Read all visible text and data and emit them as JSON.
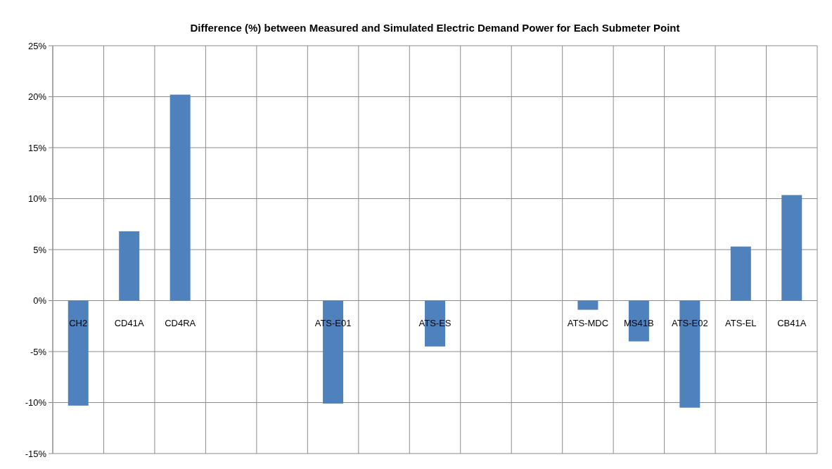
{
  "chart_data": {
    "type": "bar",
    "title": "Difference (%) between Measured and Simulated Electric Demand Power for Each Submeter Point",
    "categories": [
      "CH2",
      "CD41A",
      "CD4RA",
      null,
      null,
      "ATS-E01",
      null,
      "ATS-ES",
      null,
      null,
      "ATS-MDC",
      "MS41B",
      "ATS-E02",
      "ATS-EL",
      "CB41A"
    ],
    "values": [
      -10.3,
      6.8,
      20.2,
      null,
      null,
      -10.1,
      null,
      -4.5,
      null,
      null,
      -0.9,
      -4.0,
      -10.5,
      5.3,
      10.35
    ],
    "color": "#4f81bd",
    "ylim": [
      -15,
      25
    ],
    "yticks": [
      {
        "value": -15,
        "label": "-15%"
      },
      {
        "value": -10,
        "label": "-10%"
      },
      {
        "value": -5,
        "label": "-5%"
      },
      {
        "value": 0,
        "label": "0%"
      },
      {
        "value": 5,
        "label": "5%"
      },
      {
        "value": 10,
        "label": "10%"
      },
      {
        "value": 15,
        "label": "15%"
      },
      {
        "value": 20,
        "label": "20%"
      },
      {
        "value": 25,
        "label": "25%"
      }
    ],
    "grid": true
  }
}
